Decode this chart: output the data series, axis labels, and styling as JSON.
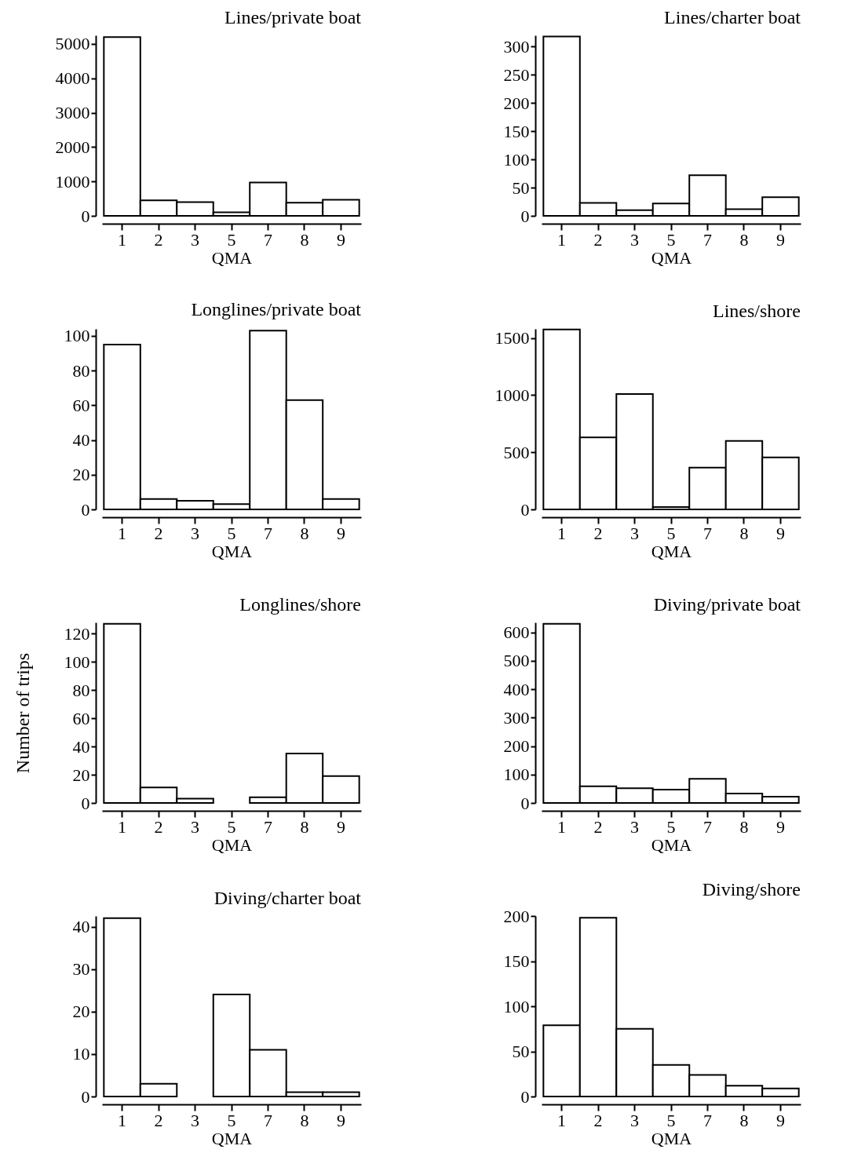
{
  "chart_data": [
    {
      "type": "bar",
      "title": "Lines/private boat",
      "xlabel": "QMA",
      "categories": [
        "1",
        "2",
        "3",
        "5",
        "7",
        "8",
        "9"
      ],
      "values": [
        5200,
        450,
        400,
        100,
        970,
        380,
        470
      ],
      "color": "#ffffff",
      "ylim": [
        0,
        5250
      ],
      "yticks": [
        0,
        1000,
        2000,
        3000,
        4000,
        5000
      ]
    },
    {
      "type": "bar",
      "title": "Lines/charter boat",
      "xlabel": "QMA",
      "categories": [
        "1",
        "2",
        "3",
        "5",
        "7",
        "8",
        "9"
      ],
      "values": [
        318,
        23,
        10,
        22,
        72,
        12,
        33
      ],
      "color": "#ffffff",
      "ylim": [
        0,
        320
      ],
      "yticks": [
        0,
        50,
        100,
        150,
        200,
        250,
        300
      ]
    },
    {
      "type": "bar",
      "title": "Longlines/private boat",
      "xlabel": "QMA",
      "categories": [
        "1",
        "2",
        "3",
        "5",
        "7",
        "8",
        "9"
      ],
      "values": [
        95,
        6,
        5,
        3,
        103,
        63,
        6
      ],
      "color": "#ffffff",
      "ylim": [
        0,
        104
      ],
      "yticks": [
        0,
        20,
        40,
        60,
        80,
        100
      ]
    },
    {
      "type": "bar",
      "title": "Lines/shore",
      "xlabel": "QMA",
      "categories": [
        "1",
        "2",
        "3",
        "5",
        "7",
        "8",
        "9"
      ],
      "values": [
        1575,
        630,
        1010,
        20,
        365,
        600,
        455
      ],
      "color": "#ffffff",
      "ylim": [
        0,
        1580
      ],
      "yticks": [
        0,
        500,
        1000,
        1500
      ]
    },
    {
      "type": "bar",
      "title": "Longlines/shore",
      "ylabel": "Number of trips",
      "xlabel": "QMA",
      "categories": [
        "1",
        "2",
        "3",
        "5",
        "7",
        "8",
        "9"
      ],
      "values": [
        127,
        11,
        3,
        0,
        4,
        35,
        19
      ],
      "color": "#ffffff",
      "ylim": [
        0,
        128
      ],
      "yticks": [
        0,
        20,
        40,
        60,
        80,
        100,
        120
      ]
    },
    {
      "type": "bar",
      "title": "Diving/private boat",
      "xlabel": "QMA",
      "categories": [
        "1",
        "2",
        "3",
        "5",
        "7",
        "8",
        "9"
      ],
      "values": [
        630,
        59,
        52,
        47,
        85,
        33,
        22
      ],
      "color": "#ffffff",
      "ylim": [
        0,
        635
      ],
      "yticks": [
        0,
        100,
        200,
        300,
        400,
        500,
        600
      ]
    },
    {
      "type": "bar",
      "title": "Diving/charter boat",
      "xlabel": "QMA",
      "categories": [
        "1",
        "2",
        "3",
        "5",
        "7",
        "8",
        "9"
      ],
      "values": [
        42,
        3,
        0,
        24,
        11,
        1,
        1
      ],
      "color": "#ffffff",
      "ylim": [
        0,
        42.5
      ],
      "yticks": [
        0,
        10,
        20,
        30,
        40
      ]
    },
    {
      "type": "bar",
      "title": "Diving/shore",
      "xlabel": "QMA",
      "categories": [
        "1",
        "2",
        "3",
        "5",
        "7",
        "8",
        "9"
      ],
      "values": [
        79,
        198,
        75,
        35,
        24,
        12,
        9
      ],
      "color": "#ffffff",
      "ylim": [
        0,
        200
      ],
      "yticks": [
        0,
        50,
        100,
        150,
        200
      ]
    }
  ]
}
